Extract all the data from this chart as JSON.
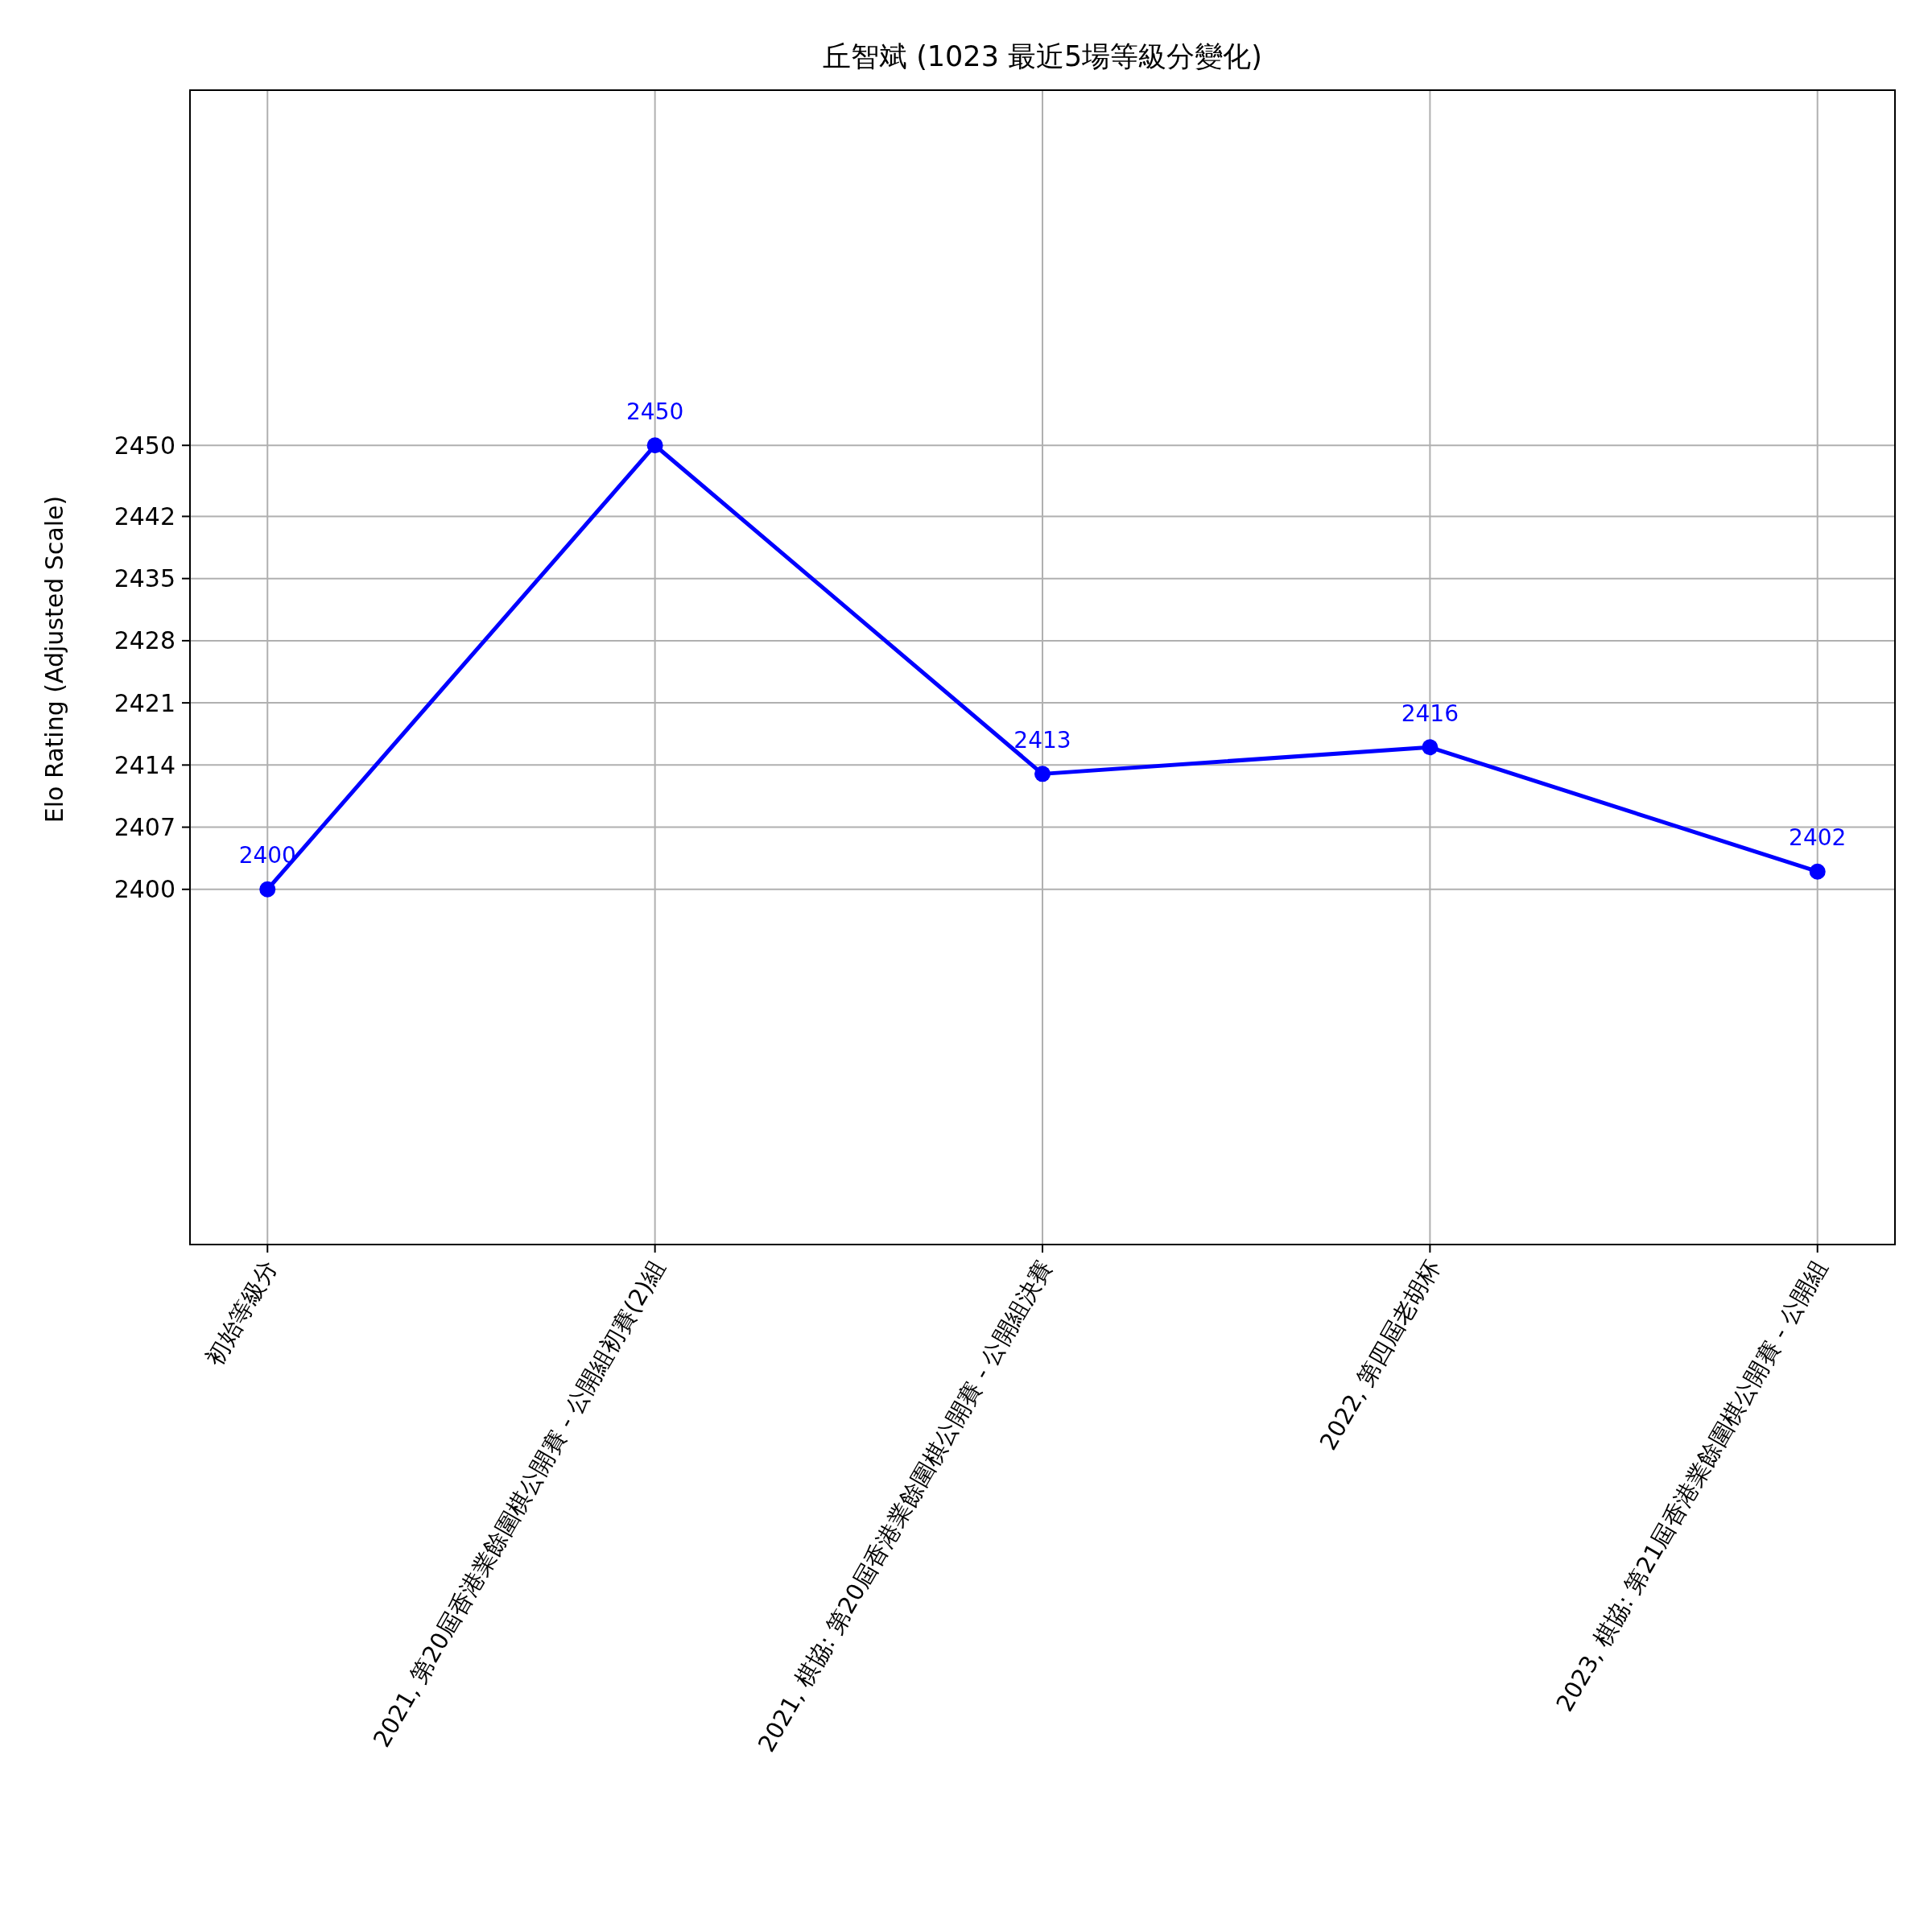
{
  "chart_data": {
    "type": "line",
    "title": "丘智斌 (1023 最近5場等級分變化)",
    "ylabel": "Elo Rating (Adjusted Scale)",
    "categories": [
      "初始等級分",
      "2021, 第20屆香港業餘圍棋公開賽 - 公開組初賽(2)組",
      "2021, 棋協: 第20屆香港業餘圍棋公開賽 - 公開組決賽",
      "2022, 第四屆老胡杯",
      "2023, 棋協: 第21屆香港業餘圍棋公開賽 - 公開組"
    ],
    "series": [
      {
        "color": "#0000ff",
        "values": [
          2400,
          2450,
          2413,
          2416,
          2402
        ]
      }
    ],
    "ylim": [
      2360,
      2490
    ],
    "yticks": [
      2400,
      2407,
      2414,
      2421,
      2428,
      2435,
      2442,
      2450
    ],
    "grid": true,
    "marker": "circle",
    "line_style": "solid",
    "data_labels": true
  }
}
